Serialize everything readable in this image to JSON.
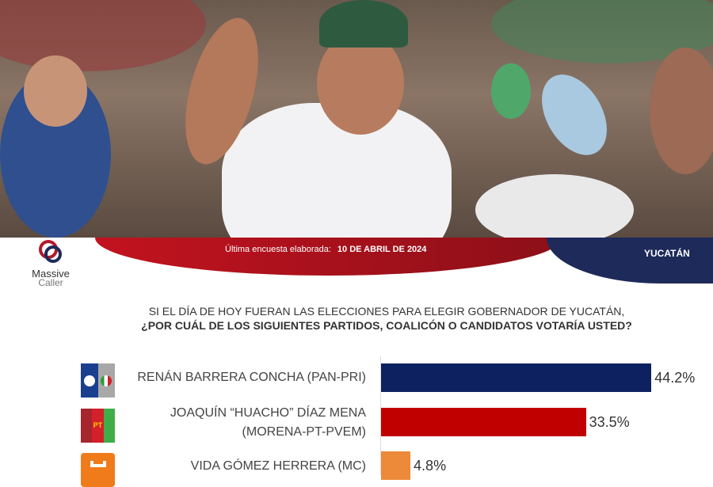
{
  "header": {
    "date_label": "Última encuesta elaborada:",
    "date_value": "10 DE ABRIL DE 2024",
    "region": "YUCATÁN",
    "logo_text_1": "Massive",
    "logo_text_2": "Caller"
  },
  "question": {
    "line1": "SI EL DÍA DE HOY FUERAN LAS ELECCIONES PARA ELEGIR GOBERNADOR DE YUCATÁN,",
    "line2": "¿POR CUÁL DE LOS SIGUIENTES PARTIDOS, COALICÓN  O CANDIDATOS VOTARÍA USTED?"
  },
  "chart_data": {
    "type": "bar",
    "orientation": "horizontal",
    "categories": [
      "RENÁN BARRERA CONCHA  (PAN-PRI)",
      "JOAQUÍN “HUACHO” DÍAZ MENA (MORENA-PT-PVEM)",
      "VIDA GÓMEZ HERRERA (MC)"
    ],
    "label_lines": [
      [
        "RENÁN BARRERA CONCHA  (PAN-PRI)"
      ],
      [
        "JOAQUÍN “HUACHO” DÍAZ MENA",
        "(MORENA-PT-PVEM)"
      ],
      [
        "VIDA GÓMEZ HERRERA (MC)"
      ]
    ],
    "values": [
      44.2,
      33.5,
      4.8
    ],
    "value_labels": [
      "44.2%",
      "33.5%",
      "4.8%"
    ],
    "colors": [
      "#0d2160",
      "#c00000",
      "#ec8a3a"
    ],
    "party_logo_icons": [
      "pan-pri-logo",
      "morena-pt-pvem-logo",
      "mc-logo"
    ]
  }
}
